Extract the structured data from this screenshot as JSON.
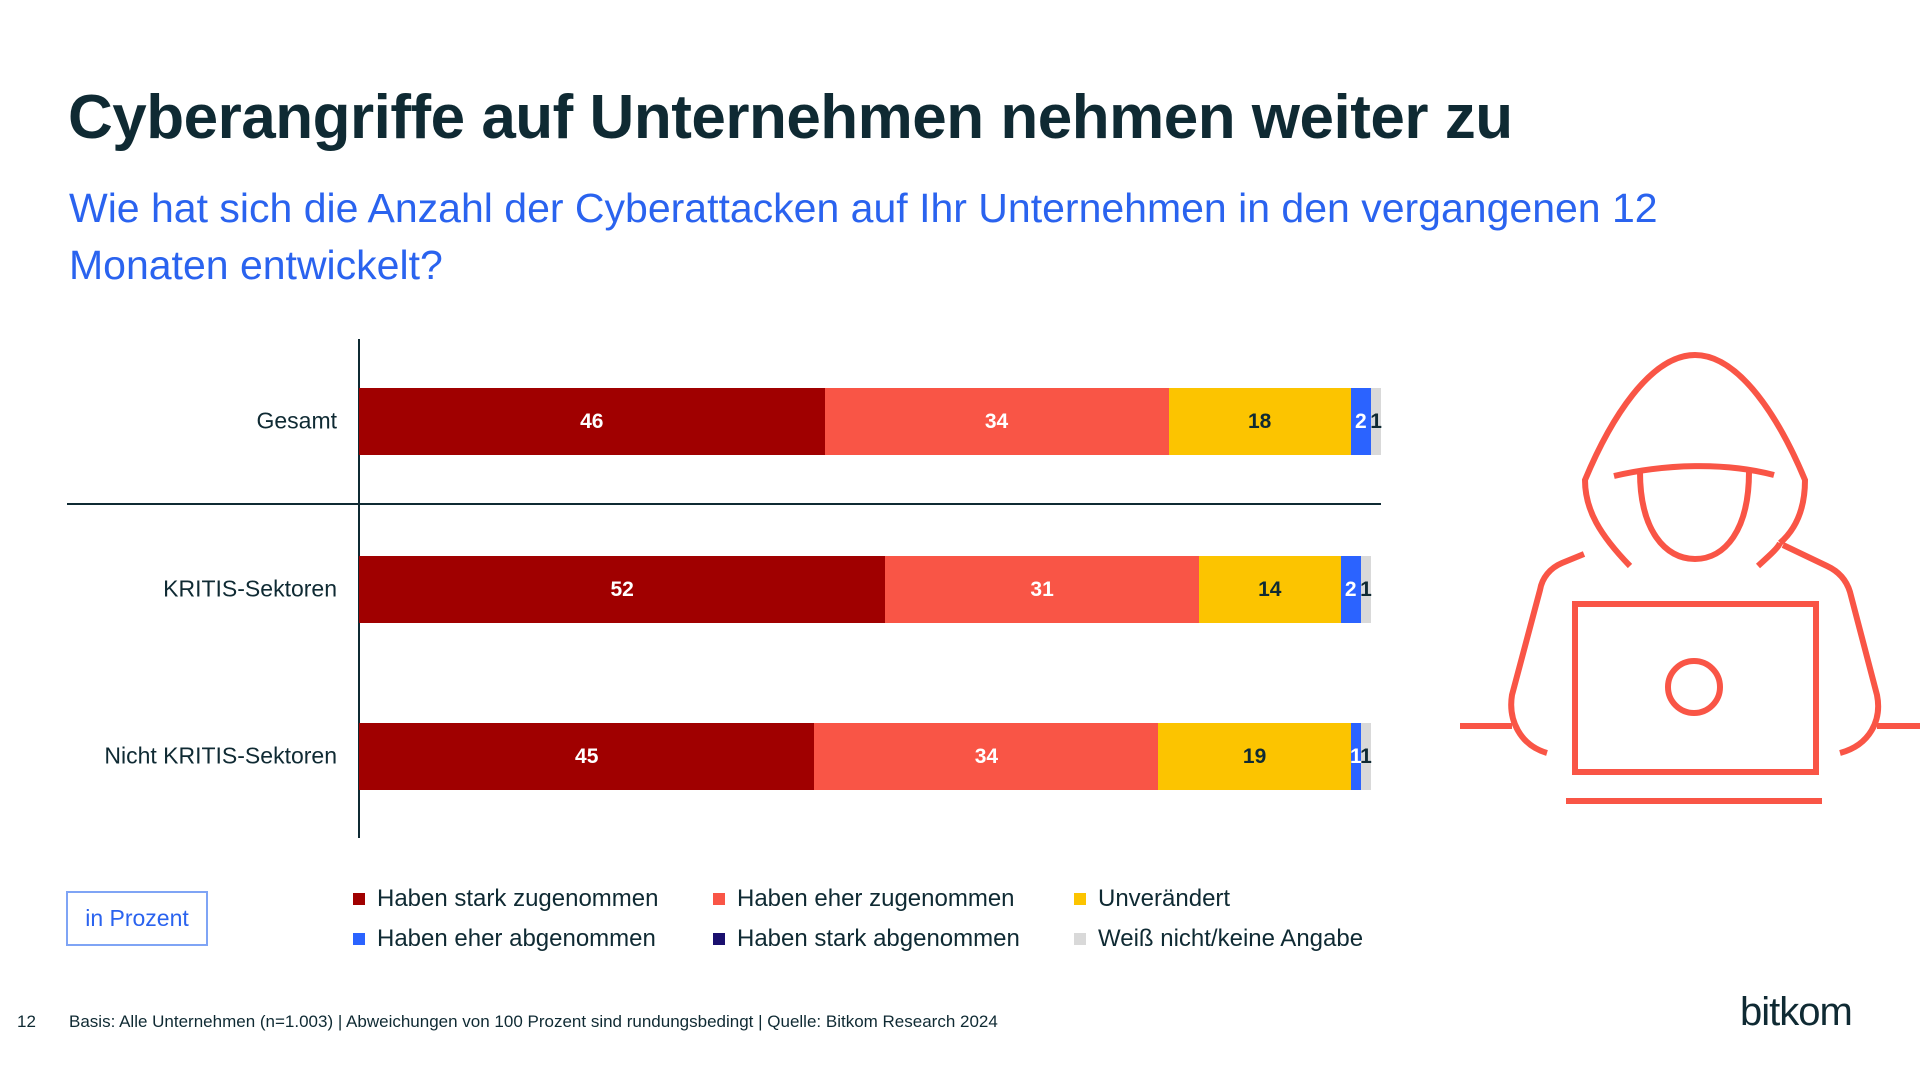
{
  "title": "Cyberangriffe auf Unternehmen nehmen weiter zu",
  "subtitle": "Wie hat sich die Anzahl der Cyberattacken auf Ihr Unternehmen in den vergangenen 12 Monaten entwickelt?",
  "unit_label": "in Prozent",
  "footer": "Basis: Alle Unternehmen (n=1.003) | Abweichungen von 100 Prozent sind rundungsbedingt | Quelle: Bitkom Research 2024",
  "page_number": "12",
  "logo": "bitkom",
  "icon": "hacker-at-laptop-icon",
  "chart_data": {
    "type": "bar",
    "orientation": "horizontal",
    "stacked": true,
    "categories": [
      "Gesamt",
      "KRITIS-Sektoren",
      "Nicht KRITIS-Sektoren"
    ],
    "series": [
      {
        "name": "Haben stark zugenommen",
        "color": "#a00000",
        "label_color": "#ffffff",
        "values": [
          46,
          52,
          45
        ]
      },
      {
        "name": "Haben eher zugenommen",
        "color": "#f95546",
        "label_color": "#ffffff",
        "values": [
          34,
          31,
          34
        ]
      },
      {
        "name": "Unverändert",
        "color": "#fcc400",
        "label_color": "#0f2a33",
        "values": [
          18,
          14,
          19
        ]
      },
      {
        "name": "Haben eher abgenommen",
        "color": "#2b63ff",
        "label_color": "#ffffff",
        "values": [
          2,
          2,
          1
        ]
      },
      {
        "name": "Haben stark abgenommen",
        "color": "#1a0f6e",
        "label_color": "#ffffff",
        "values": [
          0,
          0,
          0
        ]
      },
      {
        "name": "Weiß nicht/keine Angabe",
        "color": "#d9d9d9",
        "label_color": "#0f2a33",
        "values": [
          1,
          1,
          1
        ]
      }
    ],
    "legend_position": "bottom",
    "grid": false
  }
}
